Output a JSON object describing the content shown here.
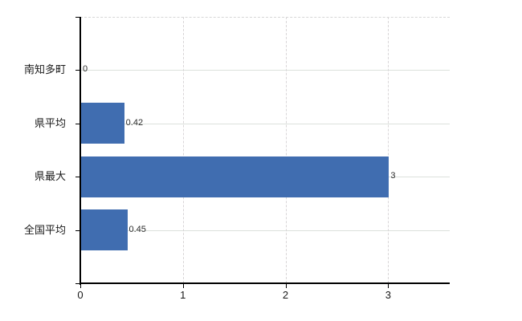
{
  "chart_data": {
    "type": "bar",
    "orientation": "horizontal",
    "title": "",
    "xlabel": "",
    "ylabel": "",
    "categories": [
      "南知多町",
      "県平均",
      "県最大",
      "全国平均"
    ],
    "values": [
      0,
      0.42,
      3,
      0.45
    ],
    "value_labels": [
      "0",
      "0.42",
      "3",
      "0.45"
    ],
    "x_ticks": [
      0,
      1,
      2,
      3
    ],
    "x_tick_labels": [
      "0",
      "1",
      "2",
      "3"
    ],
    "xlim": [
      0,
      3.6
    ],
    "grid": true,
    "legend": false,
    "colors": {
      "bar": "#406db0",
      "axis": "#000000",
      "gridline_horizontal": "#dce1dc",
      "gridline_vertical": "#d9d6d8",
      "plot_top_border": "#d6d6d6",
      "background": "#ffffff"
    }
  }
}
